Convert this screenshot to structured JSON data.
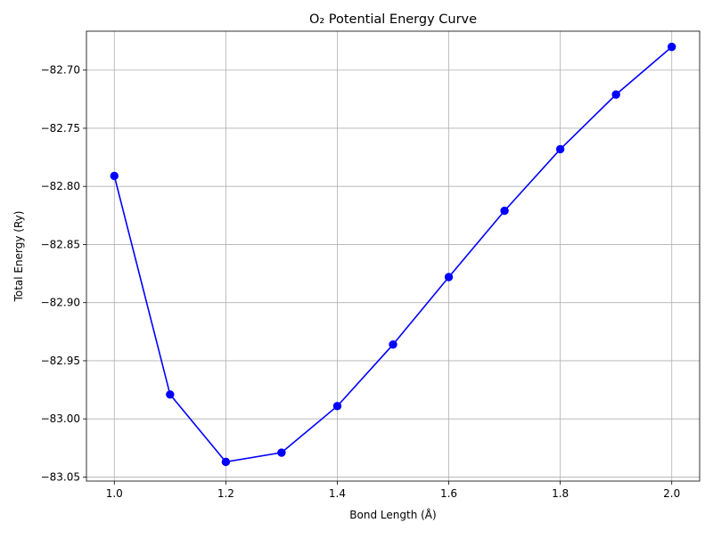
{
  "chart_data": {
    "type": "line",
    "title": "O₂ Potential Energy Curve",
    "xlabel": "Bond Length (Å)",
    "ylabel": "Total Energy (Ry)",
    "xlim": [
      0.95,
      2.05
    ],
    "ylim": [
      -83.0535,
      -82.6665
    ],
    "x_ticks": [
      1.0,
      1.2,
      1.4,
      1.6,
      1.8,
      2.0
    ],
    "x_tick_labels": [
      "1.0",
      "1.2",
      "1.4",
      "1.6",
      "1.8",
      "2.0"
    ],
    "y_ticks": [
      -83.05,
      -83.0,
      -82.95,
      -82.9,
      -82.85,
      -82.8,
      -82.75,
      -82.7
    ],
    "y_tick_labels": [
      "−83.05",
      "−83.00",
      "−82.95",
      "−82.90",
      "−82.85",
      "−82.80",
      "−82.75",
      "−82.70"
    ],
    "grid": true,
    "series": [
      {
        "color": "#0000ff",
        "marker": "circle",
        "x": [
          1.0,
          1.1,
          1.2,
          1.3,
          1.4,
          1.5,
          1.6,
          1.7,
          1.8,
          1.9,
          2.0
        ],
        "y": [
          -82.791,
          -82.979,
          -83.037,
          -83.029,
          -82.989,
          -82.936,
          -82.878,
          -82.821,
          -82.768,
          -82.721,
          -82.68
        ]
      }
    ]
  }
}
